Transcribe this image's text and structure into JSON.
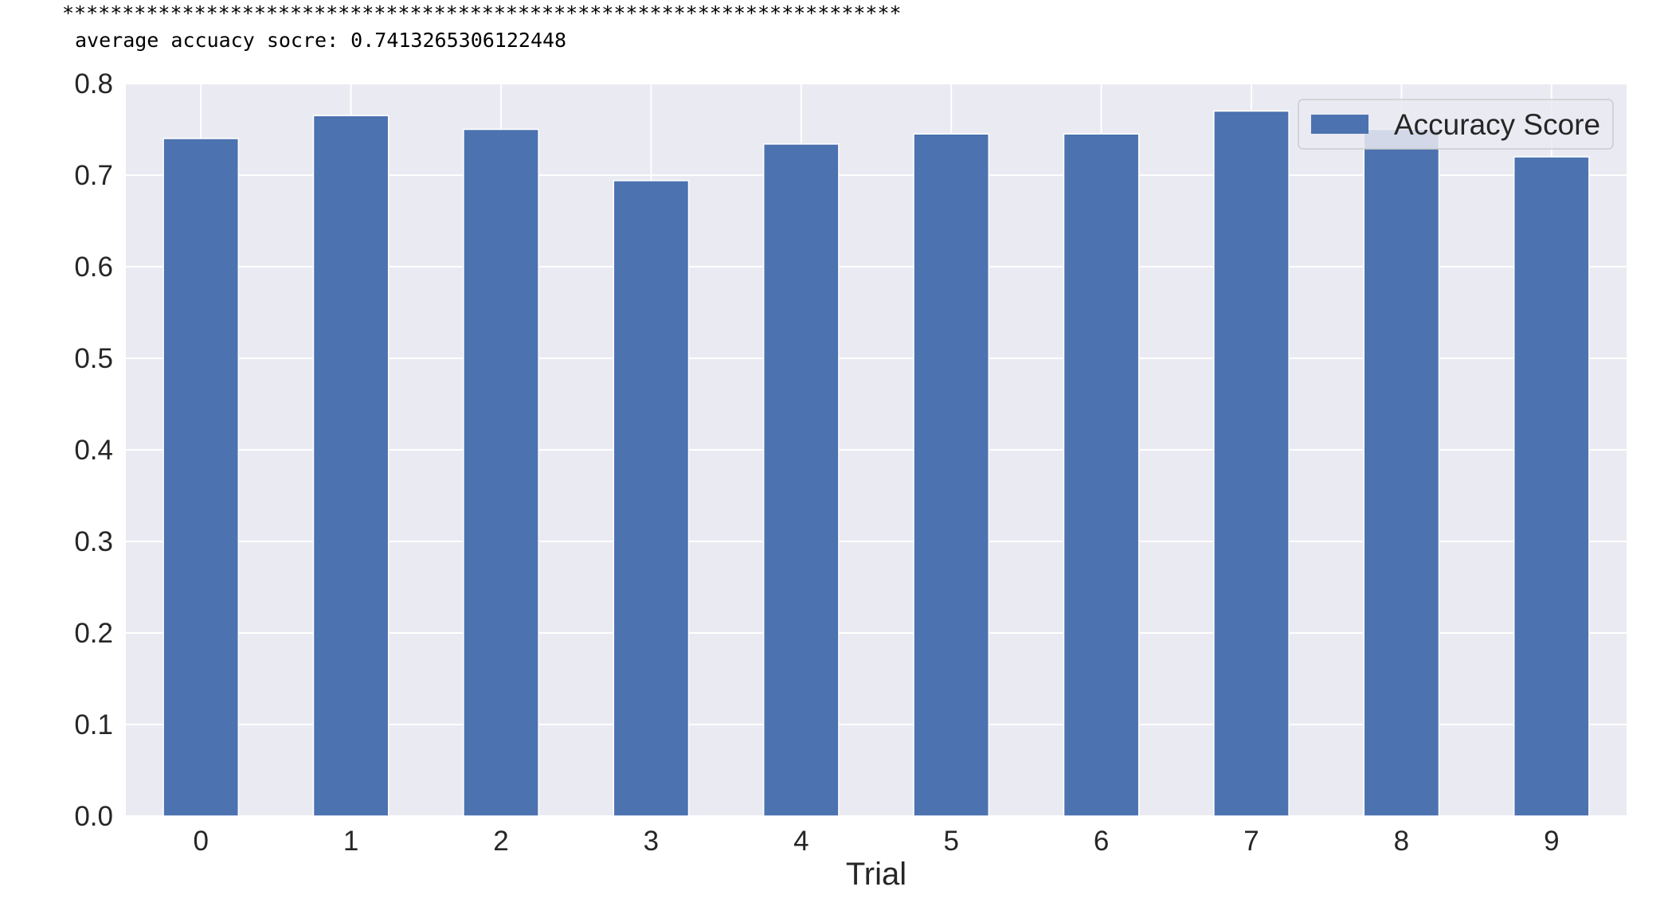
{
  "console": {
    "separator": "**********************************************************************",
    "average_line": "average accuacy socre: 0.7413265306122448"
  },
  "chart_data": {
    "type": "bar",
    "categories": [
      "0",
      "1",
      "2",
      "3",
      "4",
      "5",
      "6",
      "7",
      "8",
      "9"
    ],
    "series": [
      {
        "name": "Accuracy Score",
        "color": "#4c72b0",
        "values": [
          0.74,
          0.765,
          0.75,
          0.694,
          0.734,
          0.745,
          0.745,
          0.77,
          0.75,
          0.72
        ]
      }
    ],
    "xlabel": "Trial",
    "ylabel": "",
    "ylim": [
      0,
      0.8
    ],
    "yticks": [
      "0.0",
      "0.1",
      "0.2",
      "0.3",
      "0.4",
      "0.5",
      "0.6",
      "0.7",
      "0.8"
    ],
    "grid": true,
    "legend_position": "upper right",
    "background": "#eaeaf2"
  }
}
